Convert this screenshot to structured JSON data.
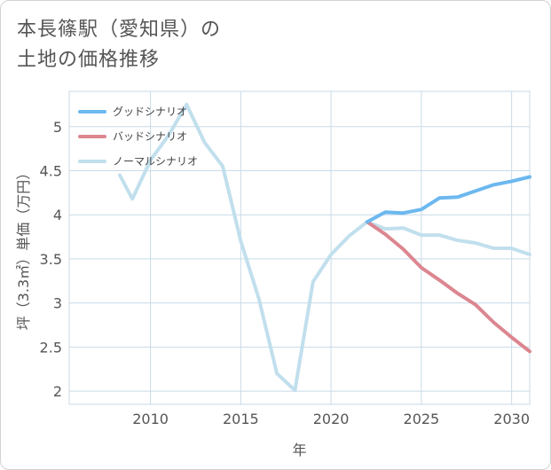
{
  "title_line1": "本長篠駅（愛知県）の",
  "title_line2": "土地の価格推移",
  "chart_data": {
    "type": "line",
    "xlabel": "年",
    "ylabel": "坪（3.3㎡）単価（万円）",
    "xlim": [
      2005.5,
      2031
    ],
    "ylim": [
      1.85,
      5.4
    ],
    "xticks": [
      2010,
      2015,
      2020,
      2025,
      2030
    ],
    "yticks": [
      2,
      2.5,
      3,
      3.5,
      4,
      4.5,
      5
    ],
    "grid": true,
    "legend_position": "top-left",
    "series": [
      {
        "name": "グッドシナリオ",
        "color": "#6cb8ef",
        "x": [
          2022,
          2023,
          2024,
          2025,
          2026,
          2027,
          2028,
          2029,
          2030,
          2031
        ],
        "y": [
          3.92,
          4.03,
          4.02,
          4.06,
          4.19,
          4.2,
          4.27,
          4.34,
          4.38,
          4.43
        ]
      },
      {
        "name": "バッドシナリオ",
        "color": "#dc8690",
        "x": [
          2022,
          2023,
          2024,
          2025,
          2026,
          2027,
          2028,
          2029,
          2030,
          2031
        ],
        "y": [
          3.92,
          3.78,
          3.61,
          3.4,
          3.26,
          3.11,
          2.98,
          2.78,
          2.61,
          2.45
        ]
      },
      {
        "name": "ノーマルシナリオ",
        "color": "#c1dfed",
        "x": [
          2008.3,
          2009,
          2010,
          2011,
          2012,
          2013,
          2014,
          2015,
          2016,
          2017,
          2018,
          2019,
          2020,
          2021,
          2022,
          2023,
          2024,
          2025,
          2026,
          2027,
          2028,
          2029,
          2030,
          2031
        ],
        "y": [
          4.45,
          4.18,
          4.62,
          4.9,
          5.25,
          4.82,
          4.55,
          3.7,
          3.05,
          2.2,
          2.01,
          3.24,
          3.55,
          3.76,
          3.92,
          3.84,
          3.85,
          3.77,
          3.77,
          3.71,
          3.68,
          3.62,
          3.62,
          3.55
        ]
      }
    ]
  }
}
